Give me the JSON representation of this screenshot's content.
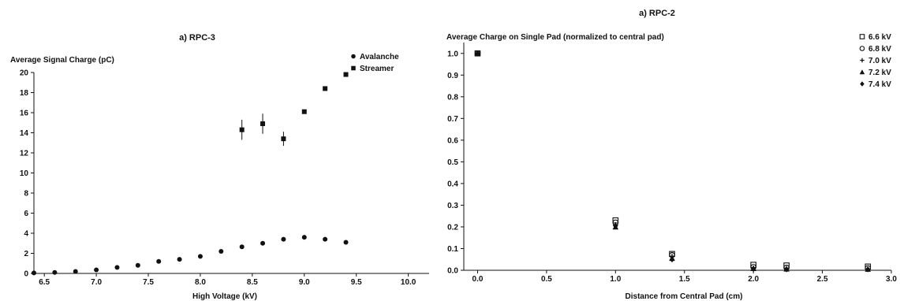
{
  "chart_data": [
    {
      "type": "scatter",
      "title": "a) RPC-3",
      "ylabel": "Average Signal Charge (pC)",
      "xlabel": "High Voltage (kV)",
      "xlim": [
        6.4,
        10.2
      ],
      "ylim": [
        0,
        20
      ],
      "xticks": [
        "6.5",
        "7.0",
        "7.5",
        "8.0",
        "8.5",
        "9.0",
        "9.5",
        "10.0"
      ],
      "yticks": [
        "0",
        "2",
        "4",
        "6",
        "8",
        "10",
        "12",
        "14",
        "16",
        "18",
        "20"
      ],
      "grid": false,
      "legend_position": "top-right",
      "series": [
        {
          "name": "Avalanche",
          "marker": "circle",
          "x": [
            6.4,
            6.6,
            6.8,
            7.0,
            7.2,
            7.4,
            7.6,
            7.8,
            8.0,
            8.2,
            8.4,
            8.6,
            8.8,
            9.0,
            9.2,
            9.4
          ],
          "y": [
            0.05,
            0.1,
            0.2,
            0.35,
            0.6,
            0.8,
            1.2,
            1.4,
            1.7,
            2.2,
            2.65,
            3.0,
            3.4,
            3.6,
            3.4,
            3.1
          ],
          "yerr": []
        },
        {
          "name": "Streamer",
          "marker": "square",
          "x": [
            8.4,
            8.6,
            8.8,
            9.0,
            9.2,
            9.4
          ],
          "y": [
            14.3,
            14.9,
            13.4,
            16.1,
            18.4,
            19.8
          ],
          "yerr": [
            1.0,
            1.0,
            0.7,
            0,
            0,
            0
          ]
        }
      ]
    },
    {
      "type": "scatter",
      "title": "a) RPC-2",
      "ylabel": "Average Charge on Single Pad (normalized to central pad)",
      "xlabel": "Distance from Central Pad (cm)",
      "xlim": [
        -0.1,
        3.0
      ],
      "ylim": [
        0,
        1.05
      ],
      "xticks": [
        "0.0",
        "0.5",
        "1.0",
        "1.5",
        "2.0",
        "2.5",
        "3.0"
      ],
      "yticks": [
        "0.0",
        "0.1",
        "0.2",
        "0.3",
        "0.4",
        "0.5",
        "0.6",
        "0.7",
        "0.8",
        "0.9",
        "1.0"
      ],
      "grid": false,
      "legend_position": "top-right",
      "series": [
        {
          "name": "6.6 kV",
          "marker": "open-square",
          "x": [
            0,
            1.0,
            1.41,
            2.0,
            2.24,
            2.83
          ],
          "y": [
            1.0,
            0.23,
            0.075,
            0.025,
            0.022,
            0.017
          ]
        },
        {
          "name": "6.8 kV",
          "marker": "open-circle",
          "x": [
            0,
            1.0,
            1.41,
            2.0,
            2.24,
            2.83
          ],
          "y": [
            1.0,
            0.22,
            0.07,
            0.015,
            0.012,
            0.01
          ]
        },
        {
          "name": "7.0 kV",
          "marker": "plus",
          "x": [
            0,
            1.0,
            1.41,
            2.0,
            2.24,
            2.83
          ],
          "y": [
            1.0,
            0.21,
            0.065,
            0.01,
            0.008,
            0.006
          ]
        },
        {
          "name": "7.2 kV",
          "marker": "triangle",
          "x": [
            0,
            1.0,
            1.41,
            2.0,
            2.24,
            2.83
          ],
          "y": [
            1.0,
            0.2,
            0.055,
            0.008,
            0.006,
            0.005
          ]
        },
        {
          "name": "7.4 kV",
          "marker": "diamond",
          "x": [
            0,
            1.0,
            1.41,
            2.0,
            2.24,
            2.83
          ],
          "y": [
            1.0,
            0.205,
            0.05,
            0.006,
            0.004,
            0.004
          ]
        }
      ]
    }
  ]
}
